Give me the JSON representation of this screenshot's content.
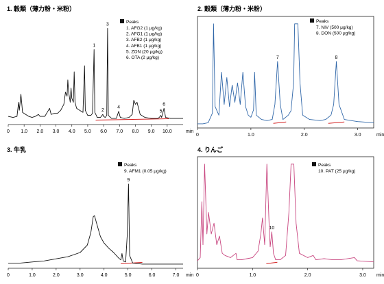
{
  "chart_data": [
    {
      "type": "line",
      "title": "1. 穀類（薄力粉・米粉）",
      "xlabel": "min",
      "xlim": [
        0,
        11
      ],
      "xticks": [
        "0",
        "1.0",
        "2.0",
        "3.0",
        "4.0",
        "5.0",
        "6.0",
        "7.0",
        "8.0",
        "9.0",
        "10.0"
      ],
      "xtick_values": [
        0,
        1,
        2,
        3,
        4,
        5,
        6,
        7,
        8,
        9,
        10
      ],
      "line_color": "#111111",
      "baseline_color": "#d42020",
      "legend": {
        "header": "Peaks",
        "entries": [
          "1. AFG2 (1 μg/kg)",
          "2. AFG1 (1 μg/kg)",
          "3. AFB2 (1 μg/kg)",
          "4. AFB1 (1 μg/kg)",
          "5. ZON (20 μg/kg)",
          "6. OTA (2 μg/kg)"
        ]
      },
      "baseline_segment": [
        5.5,
        10.1
      ],
      "peaks": [
        {
          "label": "1",
          "x": 5.4,
          "y": 0.72
        },
        {
          "label": "2",
          "x": 5.95,
          "y": 0.08
        },
        {
          "label": "3",
          "x": 6.25,
          "y": 0.93
        },
        {
          "label": "4",
          "x": 6.95,
          "y": 0.11
        },
        {
          "label": "5",
          "x": 9.6,
          "y": 0.07
        },
        {
          "label": "6",
          "x": 9.8,
          "y": 0.14
        }
      ],
      "trace": [
        [
          0,
          0.06
        ],
        [
          0.3,
          0.05
        ],
        [
          0.55,
          0.06
        ],
        [
          0.65,
          0.2
        ],
        [
          0.7,
          0.12
        ],
        [
          0.8,
          0.28
        ],
        [
          0.9,
          0.1
        ],
        [
          1.1,
          0.08
        ],
        [
          1.3,
          0.06
        ],
        [
          1.5,
          0.05
        ],
        [
          1.7,
          0.06
        ],
        [
          1.9,
          0.08
        ],
        [
          2.0,
          0.06
        ],
        [
          2.3,
          0.06
        ],
        [
          2.6,
          0.14
        ],
        [
          2.7,
          0.08
        ],
        [
          2.9,
          0.09
        ],
        [
          3.1,
          0.09
        ],
        [
          3.3,
          0.12
        ],
        [
          3.5,
          0.18
        ],
        [
          3.6,
          0.3
        ],
        [
          3.7,
          0.26
        ],
        [
          3.75,
          0.42
        ],
        [
          3.8,
          0.3
        ],
        [
          3.9,
          0.2
        ],
        [
          3.95,
          0.34
        ],
        [
          4.0,
          0.24
        ],
        [
          4.1,
          0.2
        ],
        [
          4.15,
          0.5
        ],
        [
          4.2,
          0.2
        ],
        [
          4.3,
          0.14
        ],
        [
          4.5,
          0.12
        ],
        [
          4.7,
          0.1
        ],
        [
          4.8,
          0.56
        ],
        [
          4.85,
          0.12
        ],
        [
          5.0,
          0.07
        ],
        [
          5.2,
          0.07
        ],
        [
          5.3,
          0.09
        ],
        [
          5.4,
          0.72
        ],
        [
          5.45,
          0.1
        ],
        [
          5.6,
          0.05
        ],
        [
          5.8,
          0.05
        ],
        [
          5.95,
          0.08
        ],
        [
          6.0,
          0.06
        ],
        [
          6.1,
          0.05
        ],
        [
          6.2,
          0.07
        ],
        [
          6.25,
          0.93
        ],
        [
          6.3,
          0.07
        ],
        [
          6.5,
          0.04
        ],
        [
          6.8,
          0.04
        ],
        [
          6.95,
          0.11
        ],
        [
          7.05,
          0.05
        ],
        [
          7.3,
          0.04
        ],
        [
          7.6,
          0.05
        ],
        [
          7.8,
          0.08
        ],
        [
          7.9,
          0.22
        ],
        [
          8.0,
          0.18
        ],
        [
          8.1,
          0.2
        ],
        [
          8.2,
          0.14
        ],
        [
          8.3,
          0.08
        ],
        [
          8.6,
          0.05
        ],
        [
          9.0,
          0.04
        ],
        [
          9.4,
          0.04
        ],
        [
          9.5,
          0.05
        ],
        [
          9.6,
          0.07
        ],
        [
          9.65,
          0.05
        ],
        [
          9.8,
          0.14
        ],
        [
          9.9,
          0.05
        ],
        [
          10.2,
          0.04
        ],
        [
          10.6,
          0.04
        ],
        [
          11,
          0.04
        ]
      ]
    },
    {
      "type": "line",
      "title": "2. 穀類（薄力粉・米粉）",
      "xlabel": "min",
      "xlim": [
        0,
        3.3
      ],
      "xticks": [
        "0",
        "1.0",
        "2.0",
        "3.0"
      ],
      "xtick_values": [
        0,
        1,
        2,
        3
      ],
      "line_color": "#2f66a8",
      "baseline_color": "#d42020",
      "legend": {
        "header": "Peaks",
        "entries": [
          "7. NIV (500 μg/kg)",
          "8. DON (500 μg/kg)"
        ]
      },
      "baseline_segment": [
        1.42,
        1.66
      ],
      "baseline_segment_2": [
        2.45,
        2.75
      ],
      "peaks": [
        {
          "label": "7",
          "x": 1.5,
          "y": 0.6
        },
        {
          "label": "8",
          "x": 2.6,
          "y": 0.6
        }
      ],
      "trace": [
        [
          0,
          0.02
        ],
        [
          0.1,
          0.02
        ],
        [
          0.2,
          0.03
        ],
        [
          0.28,
          0.12
        ],
        [
          0.3,
          0.95
        ],
        [
          0.33,
          0.18
        ],
        [
          0.4,
          0.1
        ],
        [
          0.45,
          0.5
        ],
        [
          0.5,
          0.2
        ],
        [
          0.55,
          0.45
        ],
        [
          0.6,
          0.18
        ],
        [
          0.65,
          0.38
        ],
        [
          0.7,
          0.22
        ],
        [
          0.75,
          0.4
        ],
        [
          0.8,
          0.2
        ],
        [
          0.85,
          0.5
        ],
        [
          0.9,
          0.18
        ],
        [
          0.95,
          0.1
        ],
        [
          1.0,
          0.08
        ],
        [
          1.05,
          0.15
        ],
        [
          1.07,
          0.5
        ],
        [
          1.1,
          0.1
        ],
        [
          1.2,
          0.06
        ],
        [
          1.3,
          0.05
        ],
        [
          1.4,
          0.06
        ],
        [
          1.45,
          0.2
        ],
        [
          1.5,
          0.6
        ],
        [
          1.55,
          0.2
        ],
        [
          1.6,
          0.06
        ],
        [
          1.7,
          0.1
        ],
        [
          1.75,
          0.14
        ],
        [
          1.8,
          0.4
        ],
        [
          1.82,
          0.95
        ],
        [
          1.88,
          0.95
        ],
        [
          1.92,
          0.4
        ],
        [
          1.97,
          0.1
        ],
        [
          2.1,
          0.06
        ],
        [
          2.3,
          0.05
        ],
        [
          2.4,
          0.06
        ],
        [
          2.5,
          0.1
        ],
        [
          2.55,
          0.2
        ],
        [
          2.6,
          0.6
        ],
        [
          2.65,
          0.2
        ],
        [
          2.75,
          0.06
        ],
        [
          3.0,
          0.04
        ],
        [
          3.3,
          0.03
        ]
      ]
    },
    {
      "type": "line",
      "title": "3. 牛乳",
      "xlabel": "min",
      "xlim": [
        0,
        7.3
      ],
      "xticks": [
        "0",
        "1.0",
        "2.0",
        "3.0",
        "4.0",
        "5.0",
        "6.0",
        "7.0"
      ],
      "xtick_values": [
        0,
        1,
        2,
        3,
        4,
        5,
        6,
        7
      ],
      "line_color": "#111111",
      "baseline_color": "#d42020",
      "legend": {
        "header": "Peaks",
        "entries": [
          "9. AFM1 (0.05 μg/kg)"
        ]
      },
      "baseline_segment": [
        4.7,
        5.6
      ],
      "peaks": [
        {
          "label": "9",
          "x": 5.02,
          "y": 0.78
        }
      ],
      "trace": [
        [
          0,
          0.03
        ],
        [
          0.5,
          0.03
        ],
        [
          1.0,
          0.04
        ],
        [
          1.5,
          0.05
        ],
        [
          2.0,
          0.07
        ],
        [
          2.5,
          0.09
        ],
        [
          3.0,
          0.13
        ],
        [
          3.3,
          0.2
        ],
        [
          3.45,
          0.32
        ],
        [
          3.55,
          0.47
        ],
        [
          3.6,
          0.48
        ],
        [
          3.7,
          0.4
        ],
        [
          3.85,
          0.28
        ],
        [
          4.0,
          0.22
        ],
        [
          4.2,
          0.17
        ],
        [
          4.4,
          0.13
        ],
        [
          4.6,
          0.08
        ],
        [
          4.7,
          0.06
        ],
        [
          4.75,
          0.12
        ],
        [
          4.8,
          0.05
        ],
        [
          4.9,
          0.04
        ],
        [
          4.97,
          0.3
        ],
        [
          5.02,
          0.78
        ],
        [
          5.07,
          0.1
        ],
        [
          5.2,
          0.03
        ],
        [
          5.6,
          0.02
        ],
        [
          6.5,
          0.02
        ],
        [
          7.3,
          0.02
        ]
      ]
    },
    {
      "type": "line",
      "title": "4. りんご",
      "xlabel": "min",
      "xlim": [
        0,
        3.2
      ],
      "xticks": [
        "0",
        "1.0",
        "2.0",
        "3.0"
      ],
      "xtick_values": [
        0,
        1,
        2,
        3
      ],
      "line_color": "#c8457f",
      "baseline_color": "#d42020",
      "legend": {
        "header": "Peaks",
        "entries": [
          "10. PAT (25 μg/kg)"
        ]
      },
      "baseline_segment": [
        1.25,
        1.45
      ],
      "peaks": [
        {
          "label": "10",
          "x": 1.35,
          "y": 0.32
        }
      ],
      "trace": [
        [
          0,
          0.05
        ],
        [
          0.05,
          0.08
        ],
        [
          0.08,
          0.6
        ],
        [
          0.1,
          0.2
        ],
        [
          0.13,
          0.95
        ],
        [
          0.17,
          0.3
        ],
        [
          0.2,
          0.5
        ],
        [
          0.25,
          0.3
        ],
        [
          0.3,
          0.4
        ],
        [
          0.35,
          0.2
        ],
        [
          0.4,
          0.28
        ],
        [
          0.45,
          0.12
        ],
        [
          0.5,
          0.1
        ],
        [
          0.6,
          0.08
        ],
        [
          0.7,
          0.12
        ],
        [
          0.72,
          0.06
        ],
        [
          0.8,
          0.06
        ],
        [
          0.9,
          0.07
        ],
        [
          1.0,
          0.08
        ],
        [
          1.1,
          0.14
        ],
        [
          1.15,
          0.3
        ],
        [
          1.18,
          0.45
        ],
        [
          1.22,
          0.2
        ],
        [
          1.26,
          0.95
        ],
        [
          1.3,
          0.4
        ],
        [
          1.32,
          0.18
        ],
        [
          1.35,
          0.32
        ],
        [
          1.38,
          0.12
        ],
        [
          1.42,
          0.06
        ],
        [
          1.5,
          0.06
        ],
        [
          1.6,
          0.1
        ],
        [
          1.66,
          0.5
        ],
        [
          1.7,
          0.95
        ],
        [
          1.75,
          0.95
        ],
        [
          1.79,
          0.4
        ],
        [
          1.85,
          0.12
        ],
        [
          2.0,
          0.08
        ],
        [
          2.1,
          0.1
        ],
        [
          2.15,
          0.06
        ],
        [
          2.3,
          0.07
        ],
        [
          2.45,
          0.06
        ],
        [
          2.6,
          0.06
        ],
        [
          2.85,
          0.08
        ],
        [
          2.9,
          0.05
        ],
        [
          3.2,
          0.04
        ]
      ]
    }
  ]
}
